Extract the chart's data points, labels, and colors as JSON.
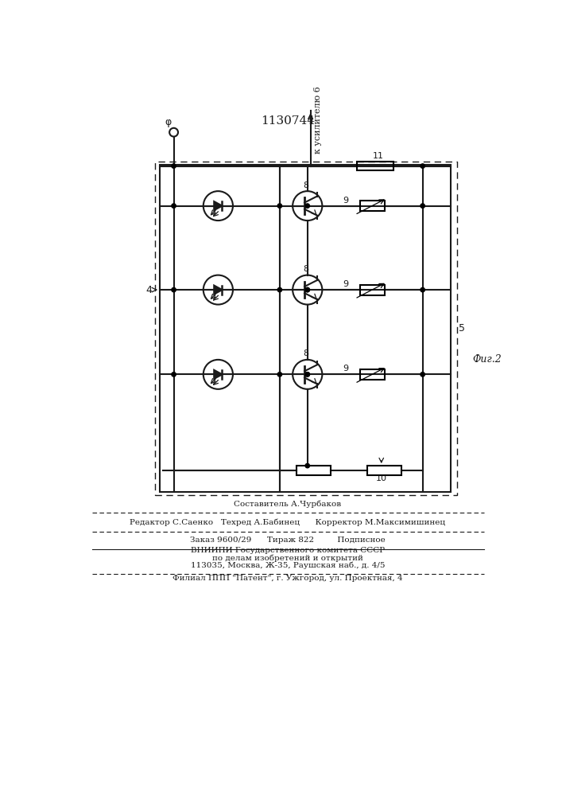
{
  "title": "1130744",
  "fig_label": "Фиг.2",
  "label_5": "5",
  "label_4": "4",
  "label_phi": "φ",
  "rotated_text": "к усилителю 6",
  "footer_lines": [
    "Составитель А.Чурбаков",
    "Редактор С.Саенко   Техред А.Бабинец      Корректор М.Максимишинец",
    "Заказ 9600/29      Тираж 822         Подписное",
    "ВНИИПИ Государственного комитета СССР",
    "по делам изобретений и открытий",
    "113035, Москва, Ж-35, Раушская наб., д. 4/5",
    "Филиал ППП \"Патент\", г. Ужгород, ул. Проектная, 4"
  ],
  "bg_color": "#ffffff",
  "line_color": "#1a1a1a"
}
